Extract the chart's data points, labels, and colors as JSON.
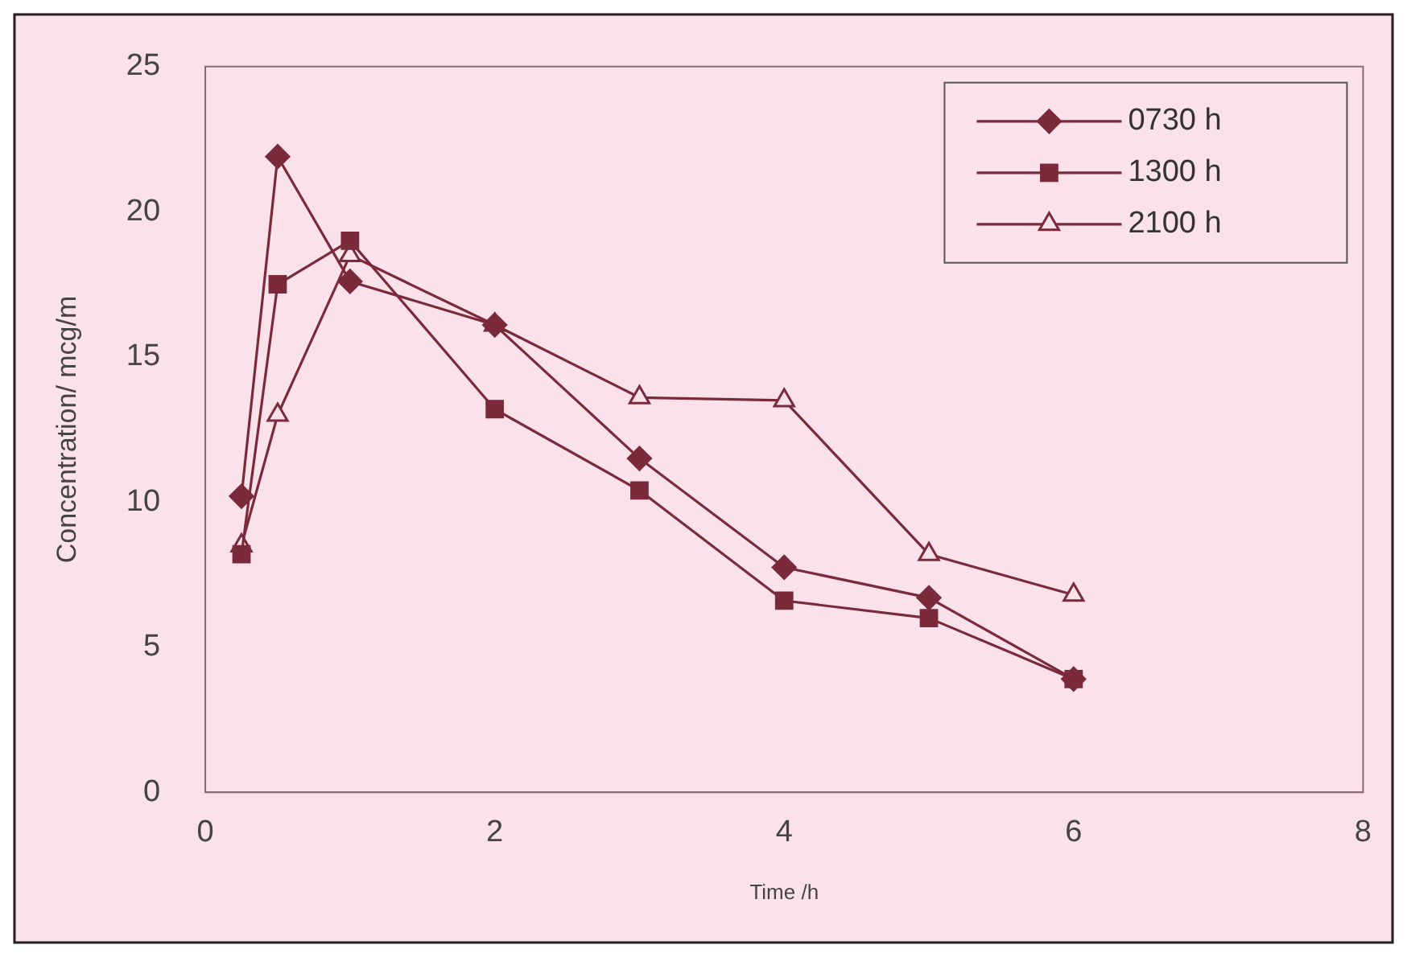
{
  "chart_data": {
    "type": "line",
    "xlabel": "Time /h",
    "ylabel": "Concentration/ mcg/m",
    "x": [
      0.25,
      0.5,
      1,
      2,
      3,
      4,
      5,
      6
    ],
    "series": [
      {
        "name": "0730 h",
        "color": "#7a2a3a",
        "marker": "diamond",
        "values": [
          10.2,
          21.9,
          17.6,
          16.1,
          11.5,
          7.75,
          6.7,
          3.9
        ]
      },
      {
        "name": "1300 h",
        "color": "#7a2a3a",
        "marker": "square",
        "values": [
          8.2,
          17.5,
          19.0,
          13.2,
          10.4,
          6.6,
          6.0,
          3.9
        ]
      },
      {
        "name": "2100 h",
        "color": "#7a2a3a",
        "marker": "triangle",
        "values": [
          8.5,
          13.0,
          18.5,
          16.1,
          13.6,
          13.5,
          8.2,
          6.8
        ]
      }
    ],
    "xlim": [
      0,
      8
    ],
    "xticks": [
      0,
      2,
      4,
      6,
      8
    ],
    "ylim": [
      0,
      25
    ],
    "yticks": [
      0,
      5,
      10,
      15,
      20,
      25
    ],
    "grid": false,
    "legend": "top right",
    "line_style": "solid"
  }
}
